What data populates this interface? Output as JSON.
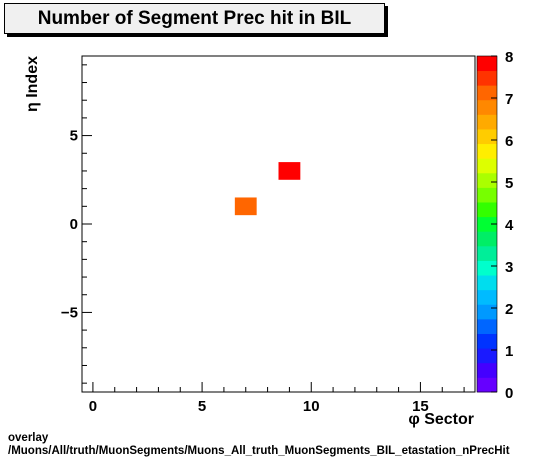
{
  "chart_data": {
    "type": "heatmap",
    "title": "Number of Segment Prec hit in BIL",
    "xlabel": "φ Sector",
    "ylabel": "η Index",
    "xlim": [
      -0.5,
      17.5
    ],
    "ylim": [
      -9.5,
      9.5
    ],
    "x_ticks": [
      "0",
      "5",
      "10",
      "15"
    ],
    "y_ticks": [
      "−5",
      "0",
      "5"
    ],
    "cells": [
      {
        "x": 7,
        "y": 1,
        "value": 7
      },
      {
        "x": 9,
        "y": 3,
        "value": 8
      }
    ],
    "z_range": [
      0,
      8
    ],
    "z_ticks": [
      "0",
      "1",
      "2",
      "3",
      "4",
      "5",
      "6",
      "7",
      "8"
    ],
    "palette": [
      "#6600ff",
      "#4400ff",
      "#1a1aff",
      "#0033ff",
      "#0066ff",
      "#0099ff",
      "#00bbff",
      "#00ddee",
      "#00ffcc",
      "#00ee99",
      "#00ee66",
      "#00ff33",
      "#33ff00",
      "#77ff00",
      "#aaff00",
      "#ddff00",
      "#ffee00",
      "#ffcc00",
      "#ffaa00",
      "#ff8800",
      "#ff6600",
      "#ff3300",
      "#ff0000"
    ]
  },
  "footer": {
    "line1": "overlay",
    "line2": "/Muons/All/truth/MuonSegments/Muons_All_truth_MuonSegments_BIL_etastation_nPrecHit"
  }
}
